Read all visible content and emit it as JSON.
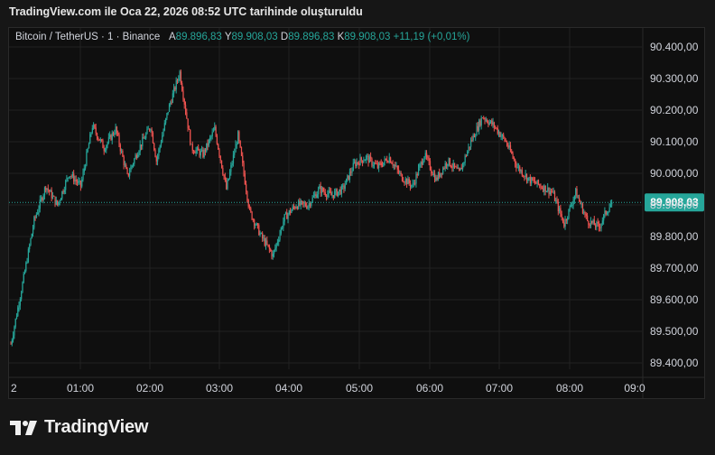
{
  "caption": "TradingView.com ile Oca 22, 2026 08:52 UTC tarihinde oluşturuldu",
  "legend": {
    "symbol": "Bitcoin / TetherUS · 1 · Binance",
    "open_label": "A",
    "open_value": "89.896,83",
    "high_label": "Y",
    "high_value": "89.908,03",
    "low_label": "D",
    "low_value": "89.896,83",
    "close_label": "K",
    "close_value": "89.908,03",
    "change": "+11,19 (+0,01%)"
  },
  "brand": {
    "name": "TradingView",
    "logo_icon": "tradingview-logo-icon"
  },
  "colors": {
    "up": "#26a69a",
    "down": "#ef5350",
    "price_badge": "#26a69a",
    "grid": "#222222"
  },
  "chart_data": {
    "type": "candlestick",
    "instrument": "Bitcoin / TetherUS",
    "interval": "1",
    "exchange": "Binance",
    "x_ticks": [
      "2",
      "01:00",
      "02:00",
      "03:00",
      "04:00",
      "05:00",
      "06:00",
      "07:00",
      "08:00",
      "09:0"
    ],
    "y_ticks": [
      "90.400,00",
      "90.300,00",
      "90.200,00",
      "90.100,00",
      "90.000,00",
      "89.900,00",
      "89.800,00",
      "89.700,00",
      "89.600,00",
      "89.500,00",
      "89.400,00"
    ],
    "ylim": [
      89370,
      90450
    ],
    "last_price": 89908.03,
    "last_price_label": "89.908,03",
    "grid": true,
    "series_close_path": [
      [
        "00:00",
        89460
      ],
      [
        "00:10",
        89650
      ],
      [
        "00:20",
        89850
      ],
      [
        "00:30",
        89960
      ],
      [
        "00:40",
        89900
      ],
      [
        "00:50",
        90000
      ],
      [
        "01:00",
        89960
      ],
      [
        "01:10",
        90150
      ],
      [
        "01:20",
        90080
      ],
      [
        "01:30",
        90140
      ],
      [
        "01:40",
        89990
      ],
      [
        "01:50",
        90080
      ],
      [
        "02:00",
        90150
      ],
      [
        "02:05",
        90040
      ],
      [
        "02:15",
        90200
      ],
      [
        "02:25",
        90320
      ],
      [
        "02:35",
        90080
      ],
      [
        "02:45",
        90060
      ],
      [
        "02:55",
        90140
      ],
      [
        "03:05",
        89950
      ],
      [
        "03:15",
        90120
      ],
      [
        "03:25",
        89880
      ],
      [
        "03:35",
        89800
      ],
      [
        "03:45",
        89740
      ],
      [
        "03:55",
        89860
      ],
      [
        "04:05",
        89900
      ],
      [
        "04:15",
        89900
      ],
      [
        "04:25",
        89950
      ],
      [
        "04:35",
        89930
      ],
      [
        "04:45",
        89950
      ],
      [
        "04:55",
        90030
      ],
      [
        "05:05",
        90050
      ],
      [
        "05:15",
        90020
      ],
      [
        "05:25",
        90050
      ],
      [
        "05:35",
        89990
      ],
      [
        "05:45",
        89960
      ],
      [
        "05:55",
        90060
      ],
      [
        "06:05",
        89980
      ],
      [
        "06:15",
        90040
      ],
      [
        "06:25",
        90000
      ],
      [
        "06:35",
        90100
      ],
      [
        "06:45",
        90180
      ],
      [
        "06:55",
        90150
      ],
      [
        "07:05",
        90100
      ],
      [
        "07:15",
        90020
      ],
      [
        "07:25",
        89980
      ],
      [
        "07:35",
        89960
      ],
      [
        "07:45",
        89940
      ],
      [
        "07:55",
        89840
      ],
      [
        "08:05",
        89940
      ],
      [
        "08:15",
        89850
      ],
      [
        "08:25",
        89830
      ],
      [
        "08:30",
        89870
      ],
      [
        "08:36",
        89908
      ]
    ]
  }
}
